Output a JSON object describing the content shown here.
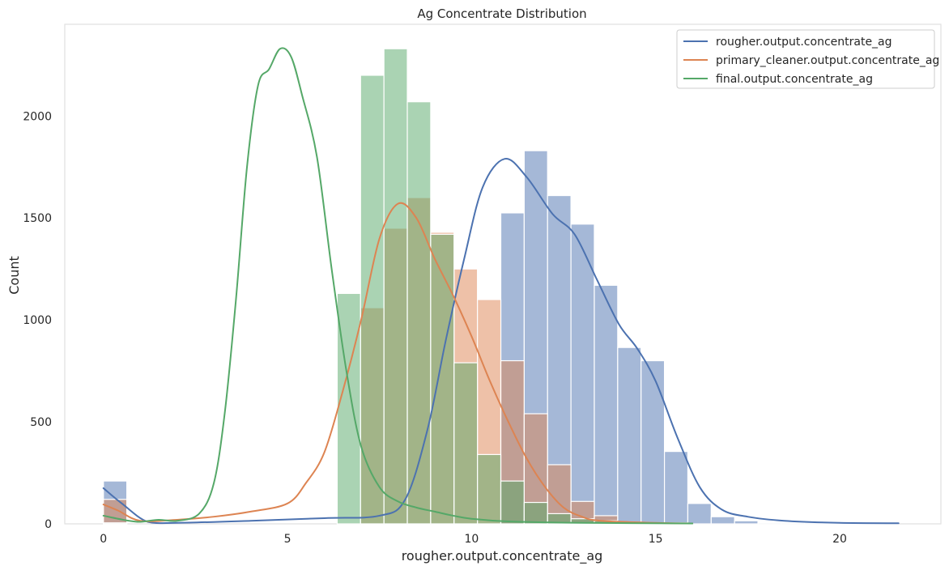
{
  "chart_data": {
    "type": "histogram",
    "title": "Ag Concentrate Distribution",
    "xlabel": "rougher.output.concentrate_ag",
    "ylabel": "Count",
    "xlim": [
      -1.05,
      22.75
    ],
    "ylim": [
      0,
      2450
    ],
    "xticks": [
      0,
      5,
      10,
      15,
      20
    ],
    "yticks": [
      0,
      500,
      1000,
      1500,
      2000
    ],
    "grid": false,
    "legend_position": "top-right",
    "bin_width": 0.635,
    "series": [
      {
        "name": "rougher.output.concentrate_ag",
        "color": "#4c72b0",
        "bin_start": 0,
        "counts": [
          210,
          0,
          0,
          0,
          0,
          0,
          0,
          0,
          0,
          0,
          0,
          0,
          5,
          5,
          5,
          5,
          5,
          1525,
          1830,
          1610,
          1470,
          1170,
          865,
          800,
          355,
          100,
          35,
          15,
          5,
          5,
          5,
          5,
          5,
          5
        ],
        "kde": [
          [
            0,
            175
          ],
          [
            0.5,
            100
          ],
          [
            1.2,
            10
          ],
          [
            2,
            5
          ],
          [
            4,
            15
          ],
          [
            6,
            28
          ],
          [
            7.5,
            40
          ],
          [
            8.2,
            120
          ],
          [
            8.8,
            460
          ],
          [
            9.3,
            900
          ],
          [
            9.8,
            1300
          ],
          [
            10.3,
            1650
          ],
          [
            10.9,
            1790
          ],
          [
            11.5,
            1700
          ],
          [
            12.2,
            1520
          ],
          [
            12.8,
            1420
          ],
          [
            13.4,
            1200
          ],
          [
            14,
            980
          ],
          [
            14.5,
            860
          ],
          [
            15,
            700
          ],
          [
            15.6,
            420
          ],
          [
            16.2,
            180
          ],
          [
            16.8,
            70
          ],
          [
            17.5,
            35
          ],
          [
            18.5,
            15
          ],
          [
            20,
            5
          ],
          [
            21.6,
            3
          ]
        ]
      },
      {
        "name": "primary_cleaner.output.concentrate_ag",
        "color": "#dd8452",
        "bin_start": 0,
        "counts": [
          120,
          0,
          0,
          0,
          0,
          0,
          0,
          0,
          0,
          0,
          0,
          1060,
          1450,
          1600,
          1430,
          1250,
          1100,
          800,
          540,
          290,
          110,
          40,
          5,
          5,
          5
        ],
        "kde": [
          [
            0,
            95
          ],
          [
            0.4,
            65
          ],
          [
            1,
            15
          ],
          [
            2,
            20
          ],
          [
            3,
            35
          ],
          [
            4,
            60
          ],
          [
            5,
            100
          ],
          [
            5.5,
            200
          ],
          [
            6,
            350
          ],
          [
            6.5,
            650
          ],
          [
            7,
            1000
          ],
          [
            7.5,
            1400
          ],
          [
            8,
            1570
          ],
          [
            8.5,
            1500
          ],
          [
            9,
            1300
          ],
          [
            9.5,
            1120
          ],
          [
            10,
            920
          ],
          [
            10.5,
            700
          ],
          [
            11,
            500
          ],
          [
            11.5,
            320
          ],
          [
            12,
            180
          ],
          [
            12.5,
            80
          ],
          [
            13,
            35
          ],
          [
            13.5,
            15
          ],
          [
            15,
            5
          ],
          [
            16,
            2
          ]
        ]
      },
      {
        "name": "final.output.concentrate_ag",
        "color": "#55a868",
        "bin_start": 0,
        "counts": [
          5,
          0,
          0,
          0,
          0,
          0,
          0,
          0,
          0,
          0,
          1130,
          2200,
          2330,
          2070,
          1420,
          790,
          340,
          210,
          105,
          50,
          25,
          15,
          5,
          5
        ],
        "kde": [
          [
            0,
            40
          ],
          [
            0.6,
            18
          ],
          [
            1,
            10
          ],
          [
            1.5,
            20
          ],
          [
            2,
            15
          ],
          [
            2.6,
            50
          ],
          [
            3,
            200
          ],
          [
            3.3,
            550
          ],
          [
            3.6,
            1100
          ],
          [
            3.9,
            1750
          ],
          [
            4.2,
            2150
          ],
          [
            4.5,
            2230
          ],
          [
            4.8,
            2330
          ],
          [
            5.1,
            2290
          ],
          [
            5.4,
            2100
          ],
          [
            5.8,
            1800
          ],
          [
            6.2,
            1250
          ],
          [
            6.6,
            750
          ],
          [
            7,
            380
          ],
          [
            7.5,
            180
          ],
          [
            8,
            110
          ],
          [
            8.5,
            80
          ],
          [
            9,
            60
          ],
          [
            9.5,
            40
          ],
          [
            10,
            25
          ],
          [
            11,
            12
          ],
          [
            13,
            5
          ],
          [
            16,
            2
          ]
        ]
      }
    ]
  }
}
